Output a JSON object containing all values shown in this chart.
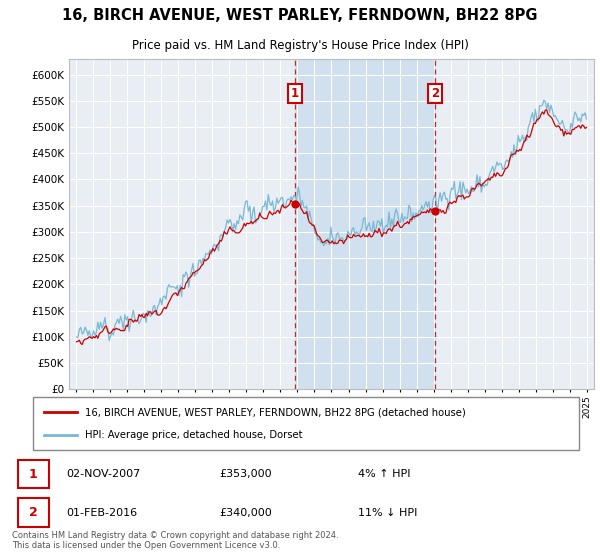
{
  "title_line1": "16, BIRCH AVENUE, WEST PARLEY, FERNDOWN, BH22 8PG",
  "title_line2": "Price paid vs. HM Land Registry's House Price Index (HPI)",
  "legend_line1": "16, BIRCH AVENUE, WEST PARLEY, FERNDOWN, BH22 8PG (detached house)",
  "legend_line2": "HPI: Average price, detached house, Dorset",
  "footnote": "Contains HM Land Registry data © Crown copyright and database right 2024.\nThis data is licensed under the Open Government Licence v3.0.",
  "sale1_label": "1",
  "sale1_date": "02-NOV-2007",
  "sale1_price": "£353,000",
  "sale1_hpi": "4% ↑ HPI",
  "sale1_year": 2007.833,
  "sale1_value": 353000,
  "sale2_label": "2",
  "sale2_date": "01-FEB-2016",
  "sale2_price": "£340,000",
  "sale2_hpi": "11% ↓ HPI",
  "sale2_year": 2016.083,
  "sale2_value": 340000,
  "hpi_color": "#7ab8d4",
  "price_color": "#cc0000",
  "marker_color": "#cc0000",
  "dashed_color": "#cc0000",
  "sale_box_color": "#cc0000",
  "plot_bg_color": "#e8eef4",
  "shaded_color": "#d0e0ee",
  "yticks": [
    0,
    50000,
    100000,
    150000,
    200000,
    250000,
    300000,
    350000,
    400000,
    450000,
    500000,
    550000,
    600000
  ],
  "ylim": [
    0,
    630000
  ],
  "xlim": [
    1994.6,
    2025.4
  ]
}
